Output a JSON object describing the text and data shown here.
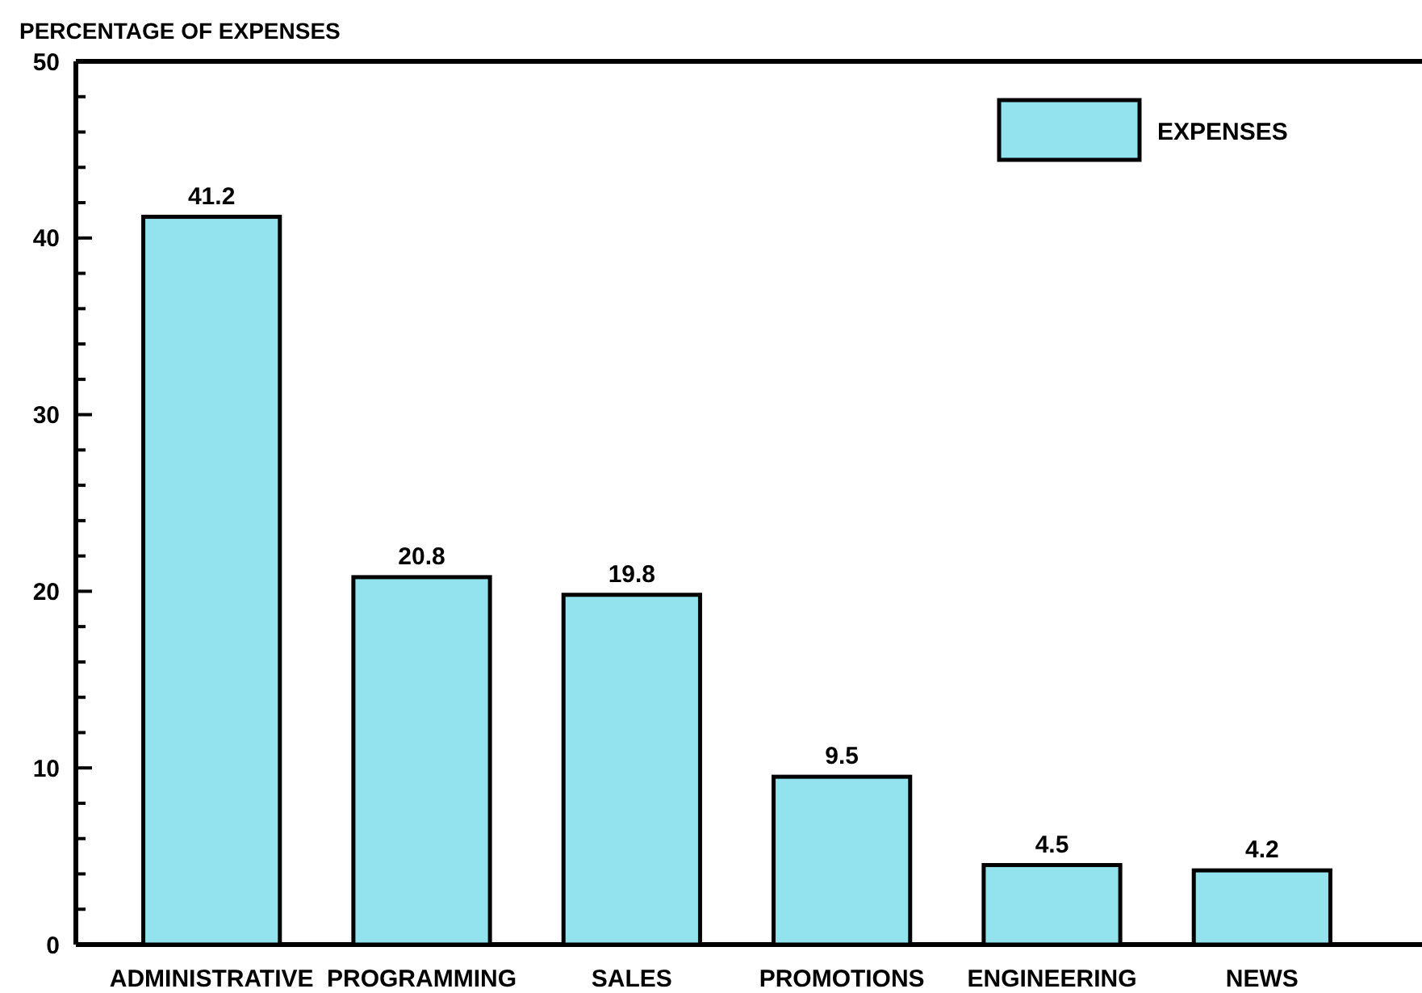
{
  "chart_data": {
    "type": "bar",
    "ylabel": "PERCENTAGE OF EXPENSES",
    "categories": [
      "ADMINISTRATIVE",
      "PROGRAMMING",
      "SALES",
      "PROMOTIONS",
      "ENGINEERING",
      "NEWS"
    ],
    "series": [
      {
        "name": "EXPENSES",
        "color": "#93e3ef",
        "values": [
          41.2,
          20.8,
          19.8,
          9.5,
          4.5,
          4.2
        ]
      }
    ],
    "data_labels": true,
    "ylim": [
      0,
      50
    ],
    "yticks": [
      0,
      {
        "value": 2,
        "label": null
      },
      {
        "value": 4,
        "label": null
      },
      {
        "value": 6,
        "label": null
      },
      {
        "value": 8,
        "label": null
      },
      10,
      {
        "value": 12,
        "label": null
      },
      {
        "value": 14,
        "label": null
      },
      {
        "value": 16,
        "label": null
      },
      {
        "value": 18,
        "label": null
      },
      20,
      {
        "value": 22,
        "label": null
      },
      {
        "value": 24,
        "label": null
      },
      {
        "value": 26,
        "label": null
      },
      {
        "value": 28,
        "label": null
      },
      30,
      {
        "value": 32,
        "label": null
      },
      {
        "value": 34,
        "label": null
      },
      {
        "value": 36,
        "label": null
      },
      {
        "value": 38,
        "label": null
      },
      40,
      {
        "value": 42,
        "label": null
      },
      {
        "value": 44,
        "label": null
      },
      {
        "value": 46,
        "label": null
      },
      {
        "value": 48,
        "label": null
      },
      50
    ],
    "grid": false,
    "legend": "top right"
  }
}
